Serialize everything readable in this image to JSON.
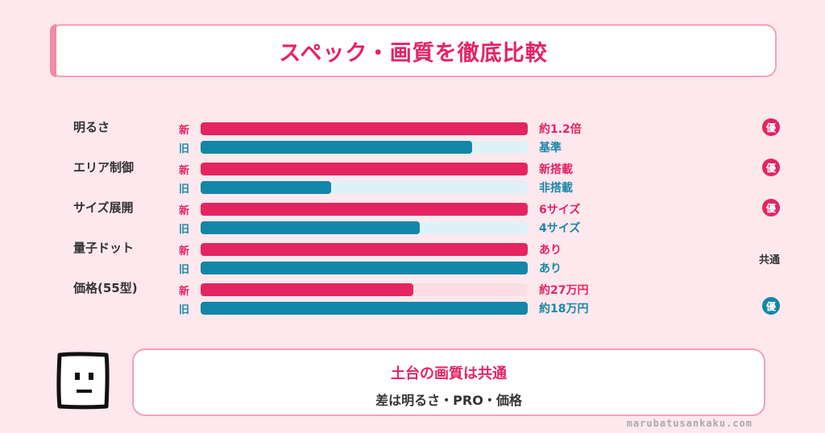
{
  "header": {
    "title": "スペック・画質を徹底比較"
  },
  "chart_data": {
    "type": "bar",
    "orientation": "horizontal",
    "legend_tags": {
      "new": "新",
      "old": "旧"
    },
    "colors": {
      "new": "#e52463",
      "old": "#1287a8"
    },
    "rows": [
      {
        "label": "明るさ",
        "new": {
          "value": 1.0,
          "text": "約1.2倍"
        },
        "old": {
          "value": 0.83,
          "text": "基準"
        },
        "badge": {
          "text": "優",
          "winner": "new"
        }
      },
      {
        "label": "エリア制御",
        "new": {
          "value": 1.0,
          "text": "新搭載"
        },
        "old": {
          "value": 0.4,
          "text": "非搭載"
        },
        "badge": {
          "text": "優",
          "winner": "new"
        }
      },
      {
        "label": "サイズ展開",
        "new": {
          "value": 1.0,
          "text": "6サイズ"
        },
        "old": {
          "value": 0.67,
          "text": "4サイズ"
        },
        "badge": {
          "text": "優",
          "winner": "new"
        }
      },
      {
        "label": "量子ドット",
        "new": {
          "value": 1.0,
          "text": "あり"
        },
        "old": {
          "value": 1.0,
          "text": "あり"
        },
        "badge": {
          "text": "共通",
          "winner": "common"
        }
      },
      {
        "label": "価格(55型)",
        "new": {
          "value": 0.65,
          "text": "約27万円"
        },
        "old": {
          "value": 1.0,
          "text": "約18万円"
        },
        "badge": {
          "text": "優",
          "winner": "old"
        }
      }
    ]
  },
  "summary": {
    "main": "土台の画質は共通",
    "sub": "差は明るさ・PRO・価格"
  },
  "footer": {
    "site": "marubatusankaku.com"
  },
  "mascot": {
    "icon": "square-face-mascot-icon"
  }
}
